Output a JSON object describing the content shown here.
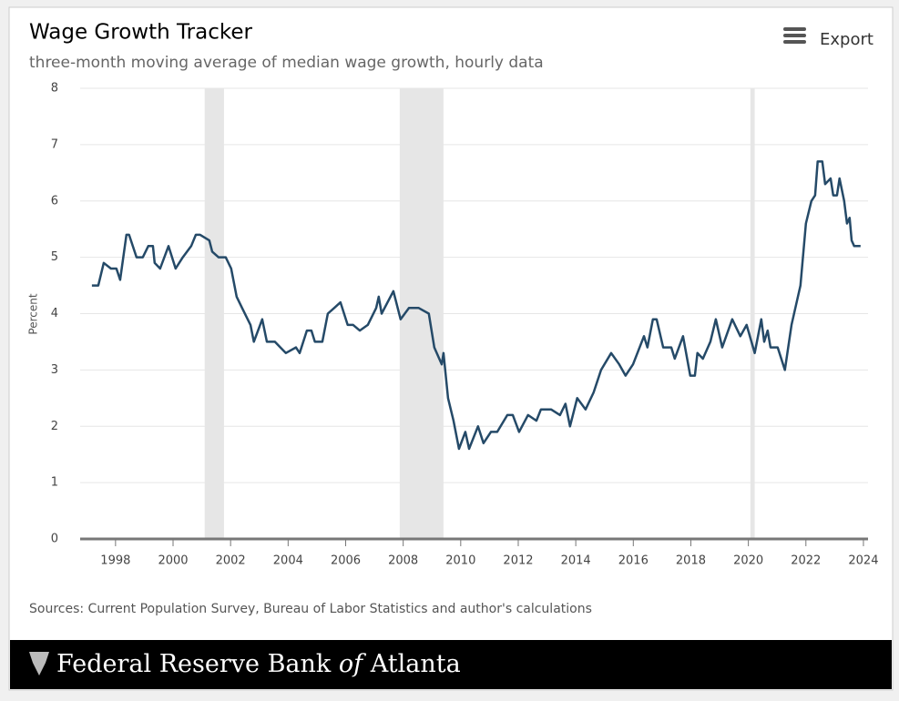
{
  "chart_data": {
    "type": "line",
    "title": "Wage Growth Tracker",
    "subtitle": "three-month moving average of median wage growth, hourly data",
    "y_label": "Percent",
    "source": "Sources: Current Population Survey, Bureau of Labor Statistics and author's calculations",
    "export_label": "Export",
    "logo": [
      "Federal Reserve Bank",
      "of",
      "Atlanta"
    ],
    "xlim": [
      1996.77,
      2024.16
    ],
    "xticks": [
      1998,
      2000,
      2002,
      2004,
      2006,
      2008,
      2010,
      2012,
      2014,
      2016,
      2018,
      2020,
      2022,
      2024
    ],
    "ylim": [
      0,
      8
    ],
    "yticks": [
      0,
      1,
      2,
      3,
      4,
      5,
      6,
      7,
      8
    ],
    "grid": true,
    "recession_color": "#e6e6e6",
    "recessions": [
      [
        2001.1,
        2001.77
      ],
      [
        2007.88,
        2009.4
      ],
      [
        2020.07,
        2020.22
      ]
    ],
    "series": [
      {
        "color": "#254a68",
        "x": [
          1997.18,
          1997.4,
          1997.59,
          1997.84,
          1998.03,
          1998.16,
          1998.38,
          1998.47,
          1998.73,
          1998.95,
          1999.14,
          1999.3,
          1999.36,
          1999.55,
          1999.84,
          2000.09,
          2000.34,
          2000.63,
          2000.79,
          2000.94,
          2001.26,
          2001.36,
          2001.58,
          2001.83,
          2002.02,
          2002.21,
          2002.4,
          2002.69,
          2002.81,
          2003.1,
          2003.26,
          2003.54,
          2003.92,
          2004.27,
          2004.4,
          2004.65,
          2004.81,
          2004.93,
          2005.19,
          2005.38,
          2005.6,
          2005.82,
          2006.07,
          2006.26,
          2006.49,
          2006.77,
          2007.06,
          2007.15,
          2007.25,
          2007.66,
          2007.91,
          2008.2,
          2008.54,
          2008.89,
          2009.08,
          2009.34,
          2009.4,
          2009.56,
          2009.75,
          2009.94,
          2010.16,
          2010.29,
          2010.6,
          2010.79,
          2011.05,
          2011.27,
          2011.62,
          2011.81,
          2012.03,
          2012.34,
          2012.63,
          2012.79,
          2013.14,
          2013.45,
          2013.64,
          2013.8,
          2014.05,
          2014.34,
          2014.62,
          2014.88,
          2015.23,
          2015.51,
          2015.73,
          2015.99,
          2016.37,
          2016.49,
          2016.68,
          2016.81,
          2017.04,
          2017.32,
          2017.44,
          2017.73,
          2017.98,
          2018.14,
          2018.23,
          2018.42,
          2018.68,
          2018.87,
          2019.09,
          2019.44,
          2019.72,
          2019.94,
          2020.22,
          2020.45,
          2020.55,
          2020.67,
          2020.77,
          2021.02,
          2021.27,
          2021.5,
          2021.81,
          2022.0,
          2022.19,
          2022.32,
          2022.41,
          2022.57,
          2022.67,
          2022.86,
          2022.95,
          2023.08,
          2023.17,
          2023.33,
          2023.43,
          2023.52,
          2023.59,
          2023.68,
          2023.9
        ],
        "values": [
          4.5,
          4.5,
          4.9,
          4.8,
          4.8,
          4.6,
          5.4,
          5.4,
          5.0,
          5.0,
          5.2,
          5.2,
          4.9,
          4.8,
          5.2,
          4.8,
          5.0,
          5.2,
          5.4,
          5.4,
          5.3,
          5.1,
          5.0,
          5.0,
          4.8,
          4.3,
          4.1,
          3.8,
          3.5,
          3.9,
          3.5,
          3.5,
          3.3,
          3.4,
          3.3,
          3.7,
          3.7,
          3.5,
          3.5,
          4.0,
          4.1,
          4.2,
          3.8,
          3.8,
          3.7,
          3.8,
          4.1,
          4.3,
          4.0,
          4.4,
          3.9,
          4.1,
          4.1,
          4.0,
          3.4,
          3.1,
          3.3,
          2.5,
          2.1,
          1.6,
          1.9,
          1.6,
          2.0,
          1.7,
          1.9,
          1.9,
          2.2,
          2.2,
          1.9,
          2.2,
          2.1,
          2.3,
          2.3,
          2.2,
          2.4,
          2.0,
          2.5,
          2.3,
          2.6,
          3.0,
          3.3,
          3.1,
          2.9,
          3.1,
          3.6,
          3.4,
          3.9,
          3.9,
          3.4,
          3.4,
          3.2,
          3.6,
          2.9,
          2.9,
          3.3,
          3.2,
          3.5,
          3.9,
          3.4,
          3.9,
          3.6,
          3.8,
          3.3,
          3.9,
          3.5,
          3.7,
          3.4,
          3.4,
          3.0,
          3.8,
          4.5,
          5.6,
          6.0,
          6.1,
          6.7,
          6.7,
          6.3,
          6.4,
          6.1,
          6.1,
          6.4,
          6.0,
          5.6,
          5.7,
          5.3,
          5.2,
          5.2
        ]
      }
    ]
  }
}
